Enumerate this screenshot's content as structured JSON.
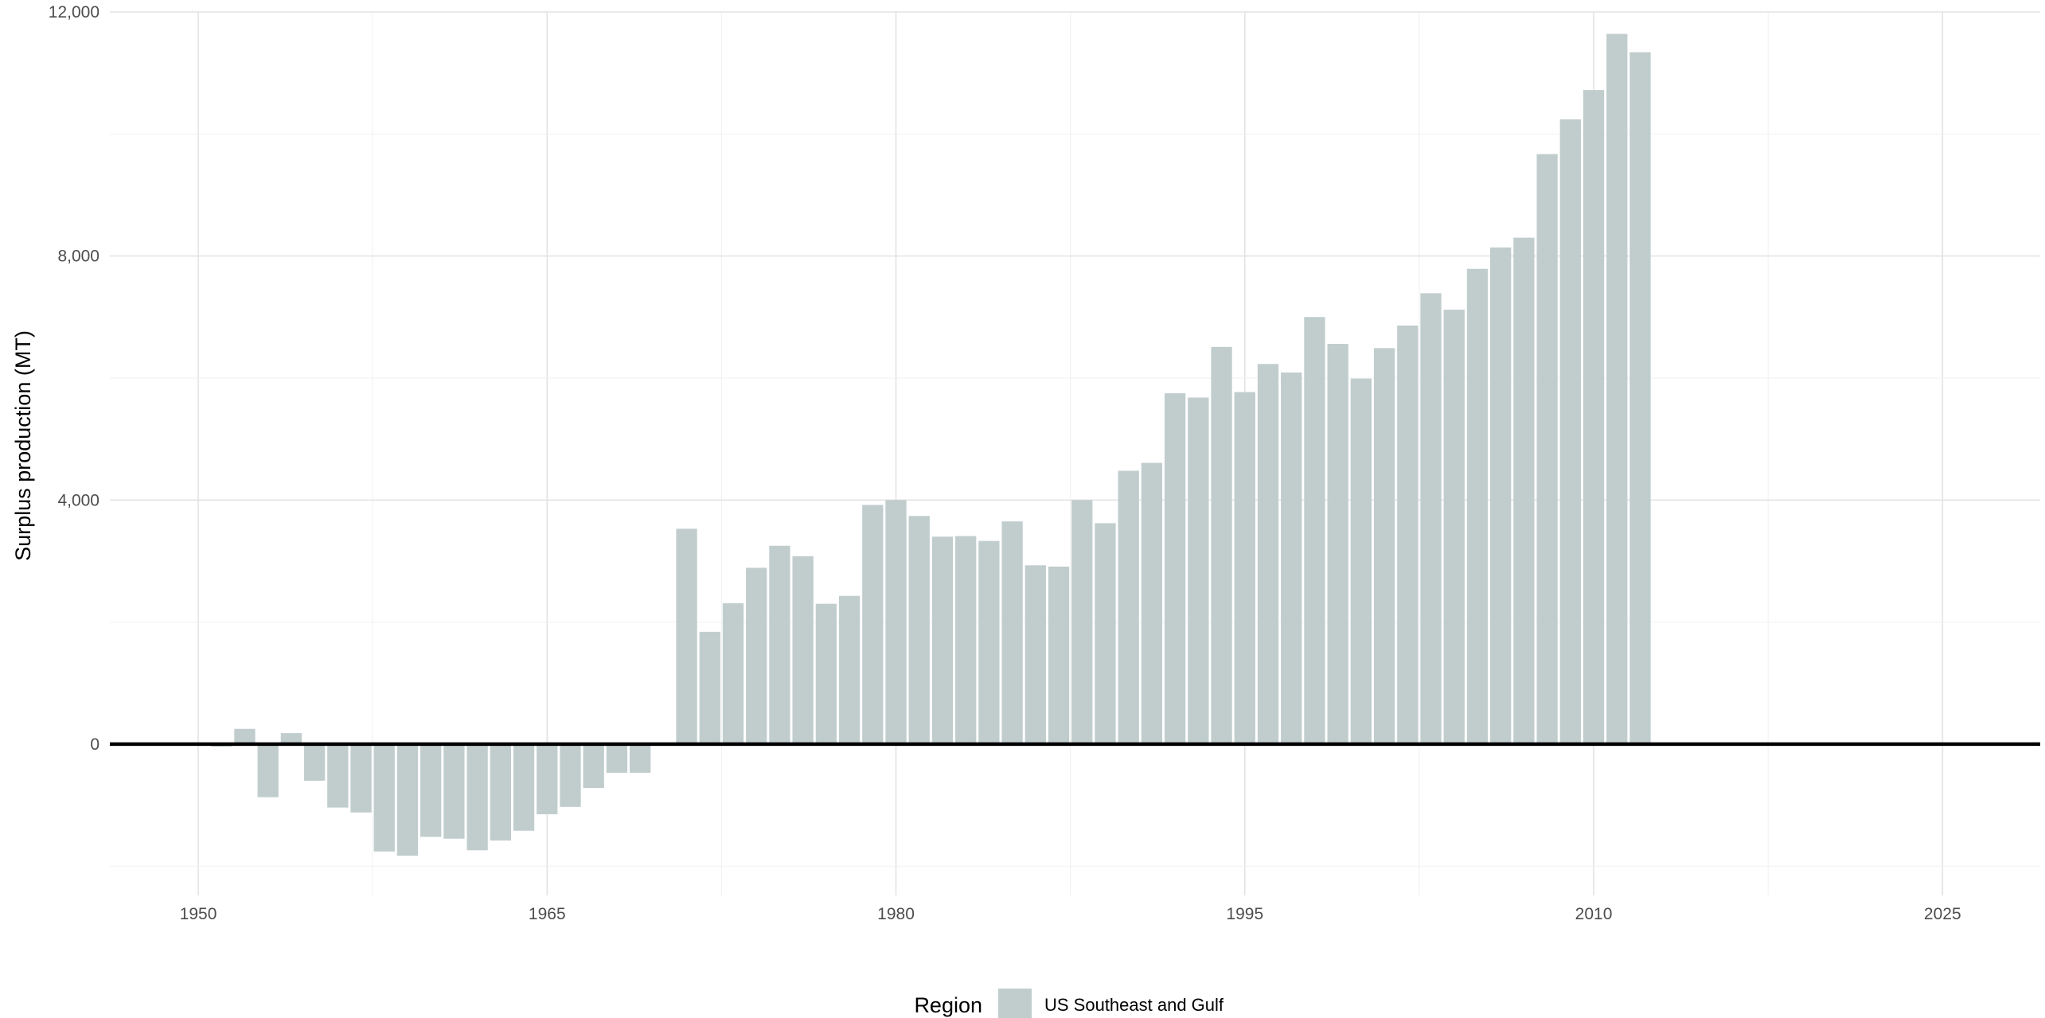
{
  "chart_data": {
    "type": "bar",
    "ylabel": "Surplus production (MT)",
    "xlim": [
      1946.2,
      2029.2
    ],
    "ylim": [
      -2480,
      12000
    ],
    "x_ticks": [
      1950,
      1965,
      1980,
      1995,
      2010,
      2025
    ],
    "x_tick_labels": [
      "1950",
      "1965",
      "1980",
      "1995",
      "2010",
      "2025"
    ],
    "y_ticks": [
      0,
      4000,
      8000,
      12000
    ],
    "y_tick_labels": [
      "0",
      "4,000",
      "8,000",
      "12,000"
    ],
    "grid": true,
    "legend": {
      "position": "bottom",
      "title": "Region",
      "entries": [
        {
          "label": "US Southeast and Gulf",
          "color": "#c1cdcd"
        }
      ]
    },
    "bar_color": "#c1cdcd",
    "zero_line_color": "#000000",
    "series": [
      {
        "name": "US Southeast and Gulf",
        "x": [
          1951,
          1952,
          1953,
          1954,
          1955,
          1956,
          1957,
          1958,
          1959,
          1960,
          1961,
          1962,
          1963,
          1964,
          1965,
          1966,
          1967,
          1968,
          1969,
          1970,
          1971,
          1972,
          1973,
          1974,
          1975,
          1976,
          1977,
          1978,
          1979,
          1980,
          1981,
          1982,
          1983,
          1984,
          1985,
          1986,
          1987,
          1988,
          1989,
          1990,
          1991,
          1992,
          1993,
          1994,
          1995,
          1996,
          1997,
          1998,
          1999,
          2000,
          2001,
          2002,
          2003,
          2004,
          2005,
          2006,
          2007,
          2008,
          2009,
          2010,
          2011,
          2012
        ],
        "values": [
          -40,
          250,
          -870,
          180,
          -600,
          -1040,
          -1120,
          -1760,
          -1830,
          -1520,
          -1550,
          -1740,
          -1580,
          -1420,
          -1150,
          -1030,
          -720,
          -470,
          -470,
          0,
          3530,
          1840,
          2310,
          2890,
          3250,
          3080,
          2300,
          2430,
          3920,
          4000,
          3740,
          3400,
          3410,
          3330,
          3650,
          2930,
          2910,
          4000,
          3620,
          4480,
          4610,
          5750,
          5680,
          6510,
          5770,
          6230,
          6090,
          7000,
          6560,
          5990,
          6490,
          6860,
          7390,
          7120,
          7790,
          8140,
          8300,
          9670,
          10240,
          10720,
          11640,
          11340
        ]
      }
    ]
  }
}
